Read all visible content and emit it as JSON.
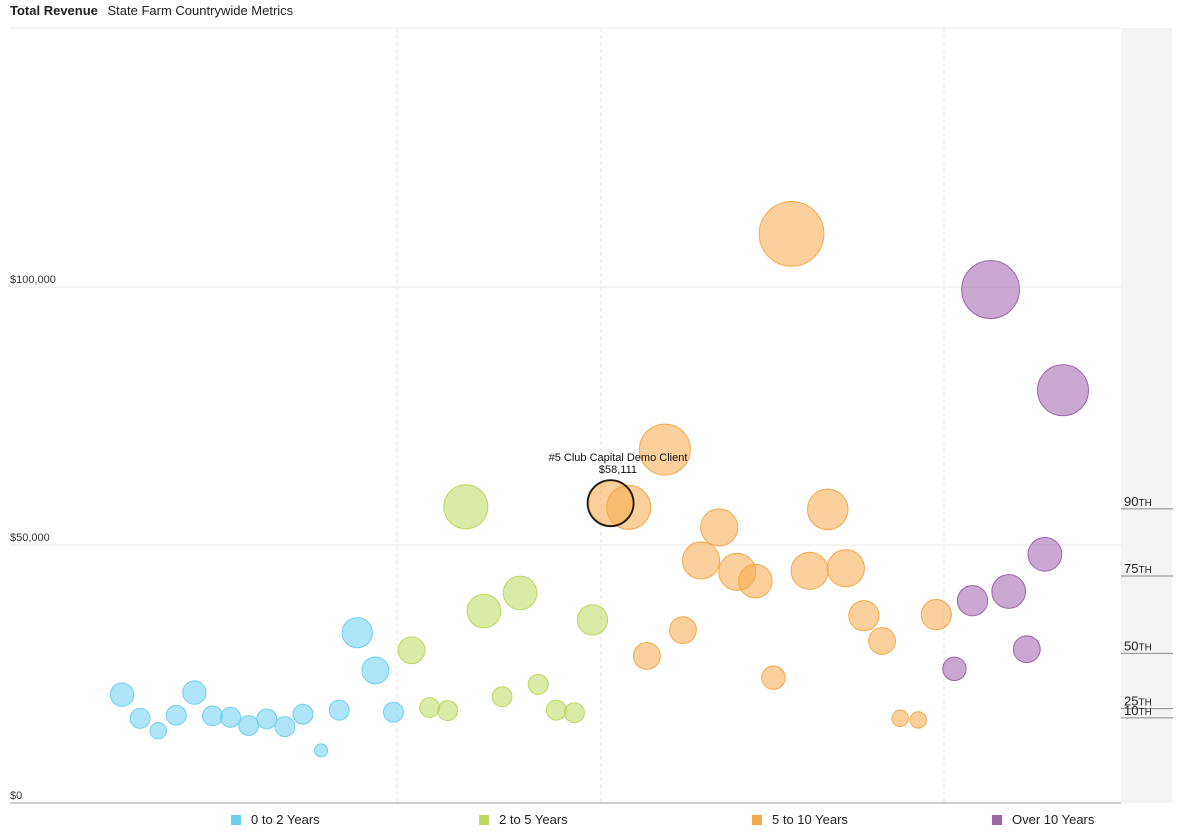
{
  "header": {
    "title": "Total Revenue",
    "subtitle": "State Farm Countrywide Metrics"
  },
  "tooltip": {
    "name": "#5 Club Capital Demo Client",
    "value": "$58,111"
  },
  "colors": {
    "0 to 2 Years": "#6ecff3",
    "2 to 5 Years": "#bcd85f",
    "5 to 10 Years": "#f7a94b",
    "Over 10 Years": "#9d63ad"
  },
  "chart_data": {
    "type": "scatter",
    "title": "Total Revenue",
    "subtitle": "State Farm Countrywide Metrics",
    "ylim": [
      0,
      150000
    ],
    "y_ticks": [
      {
        "value": 0,
        "label": "$0"
      },
      {
        "value": 50000,
        "label": "$50,000"
      },
      {
        "value": 100000,
        "label": "$100,000"
      }
    ],
    "grid": true,
    "legend": "bottom",
    "percentile_markers": [
      {
        "label": "90",
        "suffix": "TH",
        "value": 57000
      },
      {
        "label": "75",
        "suffix": "TH",
        "value": 44000
      },
      {
        "label": "50",
        "suffix": "TH",
        "value": 29000
      },
      {
        "label": "25",
        "suffix": "TH",
        "value": 18300
      },
      {
        "label": "10",
        "suffix": "TH",
        "value": 16500
      }
    ],
    "highlight": {
      "series": "5 to 10 Years",
      "index": 0
    },
    "series": [
      {
        "name": "0 to 2 Years",
        "points": [
          {
            "x": 1,
            "y": 21000,
            "size": 3
          },
          {
            "x": 2,
            "y": 16400,
            "size": 2.5
          },
          {
            "x": 3,
            "y": 14000,
            "size": 2
          },
          {
            "x": 4,
            "y": 17000,
            "size": 2.5
          },
          {
            "x": 5,
            "y": 21400,
            "size": 3
          },
          {
            "x": 6,
            "y": 16900,
            "size": 2.5
          },
          {
            "x": 7,
            "y": 16600,
            "size": 2.5
          },
          {
            "x": 8,
            "y": 15000,
            "size": 2.5
          },
          {
            "x": 9,
            "y": 16300,
            "size": 2.5
          },
          {
            "x": 10,
            "y": 14800,
            "size": 2.5
          },
          {
            "x": 11,
            "y": 17200,
            "size": 2.5
          },
          {
            "x": 12,
            "y": 10200,
            "size": 1.5
          },
          {
            "x": 13,
            "y": 18000,
            "size": 2.5
          },
          {
            "x": 14,
            "y": 33000,
            "size": 4
          },
          {
            "x": 15,
            "y": 25700,
            "size": 3.5
          },
          {
            "x": 16,
            "y": 17600,
            "size": 2.5
          }
        ]
      },
      {
        "name": "2 to 5 Years",
        "points": [
          {
            "x": 17,
            "y": 29600,
            "size": 3.5
          },
          {
            "x": 18,
            "y": 18500,
            "size": 2.5
          },
          {
            "x": 19,
            "y": 17900,
            "size": 2.5
          },
          {
            "x": 20,
            "y": 57400,
            "size": 6
          },
          {
            "x": 21,
            "y": 37200,
            "size": 4.5
          },
          {
            "x": 22,
            "y": 20600,
            "size": 2.5
          },
          {
            "x": 23,
            "y": 40700,
            "size": 4.5
          },
          {
            "x": 24,
            "y": 23000,
            "size": 2.5
          },
          {
            "x": 25,
            "y": 18000,
            "size": 2.5
          },
          {
            "x": 26,
            "y": 17500,
            "size": 2.5
          },
          {
            "x": 27,
            "y": 35500,
            "size": 4
          }
        ]
      },
      {
        "name": "5 to 10 Years",
        "points": [
          {
            "x": 28,
            "y": 58111,
            "size": 6
          },
          {
            "x": 29,
            "y": 57300,
            "size": 6
          },
          {
            "x": 30,
            "y": 28500,
            "size": 3.5
          },
          {
            "x": 31,
            "y": 68500,
            "size": 7
          },
          {
            "x": 32,
            "y": 33500,
            "size": 3.5
          },
          {
            "x": 33,
            "y": 47000,
            "size": 5
          },
          {
            "x": 34,
            "y": 53400,
            "size": 5
          },
          {
            "x": 35,
            "y": 44800,
            "size": 5
          },
          {
            "x": 36,
            "y": 43000,
            "size": 4.5
          },
          {
            "x": 37,
            "y": 24300,
            "size": 3
          },
          {
            "x": 38,
            "y": 110300,
            "size": 9
          },
          {
            "x": 39,
            "y": 45000,
            "size": 5
          },
          {
            "x": 40,
            "y": 56900,
            "size": 5.5
          },
          {
            "x": 41,
            "y": 45500,
            "size": 5
          },
          {
            "x": 42,
            "y": 36300,
            "size": 4
          },
          {
            "x": 43,
            "y": 31400,
            "size": 3.5
          },
          {
            "x": 44,
            "y": 16400,
            "size": 2
          },
          {
            "x": 45,
            "y": 16100,
            "size": 2
          },
          {
            "x": 46,
            "y": 36500,
            "size": 4
          }
        ]
      },
      {
        "name": "Over 10 Years",
        "points": [
          {
            "x": 47,
            "y": 26000,
            "size": 3
          },
          {
            "x": 48,
            "y": 39200,
            "size": 4
          },
          {
            "x": 49,
            "y": 99500,
            "size": 8
          },
          {
            "x": 50,
            "y": 41000,
            "size": 4.5
          },
          {
            "x": 51,
            "y": 29800,
            "size": 3.5
          },
          {
            "x": 52,
            "y": 48200,
            "size": 4.5
          },
          {
            "x": 53,
            "y": 80000,
            "size": 7
          }
        ]
      }
    ]
  }
}
